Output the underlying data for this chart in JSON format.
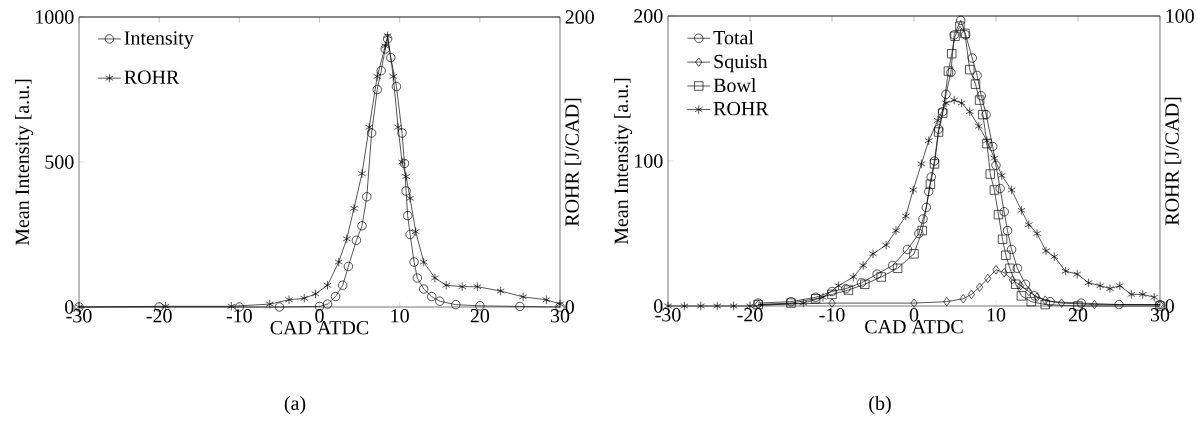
{
  "chart_data": [
    {
      "type": "line",
      "xlabel": "CAD ATDC",
      "ylabel": "Mean Intensity [a.u.]",
      "y2label": "ROHR [J/CAD]",
      "annotations": [
        "(a)"
      ],
      "xlim": [
        -30,
        30
      ],
      "xticks": [
        -30,
        -20,
        -10,
        0,
        10,
        20,
        30
      ],
      "ylim": [
        0,
        1000
      ],
      "yticks": [
        0,
        500,
        1000
      ],
      "y2lim": [
        0,
        200
      ],
      "y2ticks": [
        0,
        200
      ],
      "legend": "top left",
      "line_style": "solid",
      "series": [
        {
          "name": "Intensity",
          "color": "#000000",
          "marker": "circle",
          "x": [
            -30,
            -20,
            -10,
            -5,
            0,
            1,
            2,
            2.9,
            3.6,
            4.6,
            5.3,
            5.9,
            6.5,
            7.2,
            7.7,
            8.2,
            8.5,
            8.9,
            9.6,
            10.3,
            10.6,
            10.8,
            11,
            11.3,
            11.8,
            12.2,
            13,
            14,
            15,
            17,
            20,
            25,
            30
          ],
          "values": [
            0,
            0,
            0,
            0,
            2,
            10,
            36,
            75,
            140,
            230,
            280,
            380,
            600,
            750,
            815,
            890,
            925,
            860,
            760,
            600,
            495,
            400,
            315,
            250,
            155,
            100,
            62,
            36,
            20,
            8,
            4,
            2,
            0
          ]
        },
        {
          "name": "ROHR",
          "color": "#000000",
          "marker": "cross",
          "axis": "y2",
          "x": [
            -30,
            -19.2,
            -11,
            -6.2,
            -3.8,
            -1.9,
            -0.5,
            1,
            2.4,
            3.4,
            4.3,
            5.3,
            6.2,
            7.2,
            8.2,
            8.5,
            9.2,
            9.8,
            10.3,
            10.8,
            11.3,
            12,
            13,
            14.4,
            15.8,
            17.8,
            19.7,
            22.6,
            25.4,
            28.3,
            30
          ],
          "values": [
            0,
            0.5,
            0.5,
            2,
            5,
            6,
            9,
            15,
            31,
            47,
            68,
            92,
            124,
            159,
            180,
            187,
            159,
            124,
            100,
            90,
            75,
            52,
            31,
            20,
            15,
            14,
            14,
            11,
            7,
            5,
            2
          ]
        }
      ]
    },
    {
      "type": "line",
      "xlabel": "CAD ATDC",
      "ylabel": "Mean Intensity [a.u.]",
      "y2label": "ROHR [J/CAD]",
      "annotations": [
        "(b)"
      ],
      "xlim": [
        -30,
        30
      ],
      "xticks": [
        -30,
        -20,
        -10,
        0,
        10,
        20,
        30
      ],
      "ylim": [
        0,
        200
      ],
      "yticks": [
        0,
        100,
        200
      ],
      "y2lim": [
        0,
        100
      ],
      "y2ticks": [
        0,
        100
      ],
      "legend": "top left",
      "line_style": "solid",
      "series": [
        {
          "name": "Total",
          "color": "#000000",
          "marker": "circle",
          "x": [
            -19,
            -15,
            -12,
            -10,
            -8.3,
            -6.4,
            -4.5,
            -2.6,
            -0.8,
            0.6,
            1.1,
            1.5,
            1.8,
            2.1,
            2.5,
            3,
            3.5,
            3.9,
            4.5,
            4.9,
            5.7,
            6.3,
            7.1,
            7.7,
            8.2,
            8.8,
            9.6,
            10,
            10.5,
            11,
            11.4,
            11.9,
            12.6,
            13.6,
            14.7,
            16.6,
            20.4,
            25,
            30
          ],
          "values": [
            2,
            3,
            6,
            10,
            12,
            16,
            22,
            28,
            39,
            50,
            60,
            68,
            79,
            89,
            100,
            122,
            134,
            146,
            161,
            187,
            197,
            187,
            171,
            159,
            145,
            132,
            110,
            97,
            81,
            65,
            52,
            39,
            26,
            15,
            7,
            3,
            2,
            1,
            1
          ]
        },
        {
          "name": "Squish",
          "color": "#000000",
          "marker": "diamond",
          "x": [
            -19,
            -10,
            0,
            4,
            6,
            7,
            8,
            9,
            10,
            11,
            12,
            13,
            14,
            15,
            16,
            18,
            22,
            30
          ],
          "values": [
            1,
            2,
            2,
            3,
            5,
            8,
            13,
            19,
            25,
            23,
            18,
            14,
            10,
            6,
            4,
            2,
            1,
            1
          ]
        },
        {
          "name": "Bowl",
          "color": "#000000",
          "marker": "square",
          "x": [
            -19,
            -15,
            -12,
            -10,
            -8,
            -6,
            -4,
            -2,
            0,
            1,
            2,
            2.5,
            3,
            3.5,
            4.2,
            4.6,
            5,
            5.6,
            6.2,
            6.8,
            7.5,
            8,
            8.4,
            8.9,
            9.3,
            9.8,
            10.3,
            10.8,
            11.2,
            11.7,
            12.4,
            13.1,
            14.3,
            16,
            20,
            30
          ],
          "values": [
            1,
            2,
            5,
            8,
            11,
            15,
            20,
            26,
            36,
            52,
            84,
            98,
            120,
            133,
            162,
            174,
            186,
            193,
            188,
            163,
            153,
            142,
            132,
            112,
            91,
            80,
            63,
            46,
            35,
            26,
            15,
            7,
            3,
            1,
            0,
            0
          ]
        },
        {
          "name": "ROHR",
          "color": "#000000",
          "marker": "cross",
          "axis": "y2",
          "x": [
            -30,
            -28,
            -26,
            -24,
            -22,
            -20,
            -13.5,
            -11.1,
            -9.2,
            -7.4,
            -6.2,
            -5,
            -3.4,
            -2.2,
            -1,
            -0.1,
            0.9,
            1.8,
            2.9,
            3.9,
            4.9,
            5.8,
            6.8,
            7.9,
            8.9,
            9.8,
            10.7,
            11.9,
            13.1,
            14,
            15,
            16.1,
            17.1,
            18.5,
            19.9,
            21.3,
            22.7,
            23.9,
            25.1,
            26.5,
            27.9,
            29.3
          ],
          "values": [
            0,
            0,
            0,
            0,
            0,
            0,
            1,
            3,
            7,
            10,
            14,
            18,
            21,
            26,
            31,
            40,
            49,
            57,
            64,
            70,
            71,
            70,
            67,
            62,
            57,
            51,
            45,
            40,
            33,
            28,
            25,
            19,
            17,
            12,
            11,
            8,
            7,
            6,
            7,
            4,
            4,
            3
          ]
        }
      ]
    }
  ]
}
